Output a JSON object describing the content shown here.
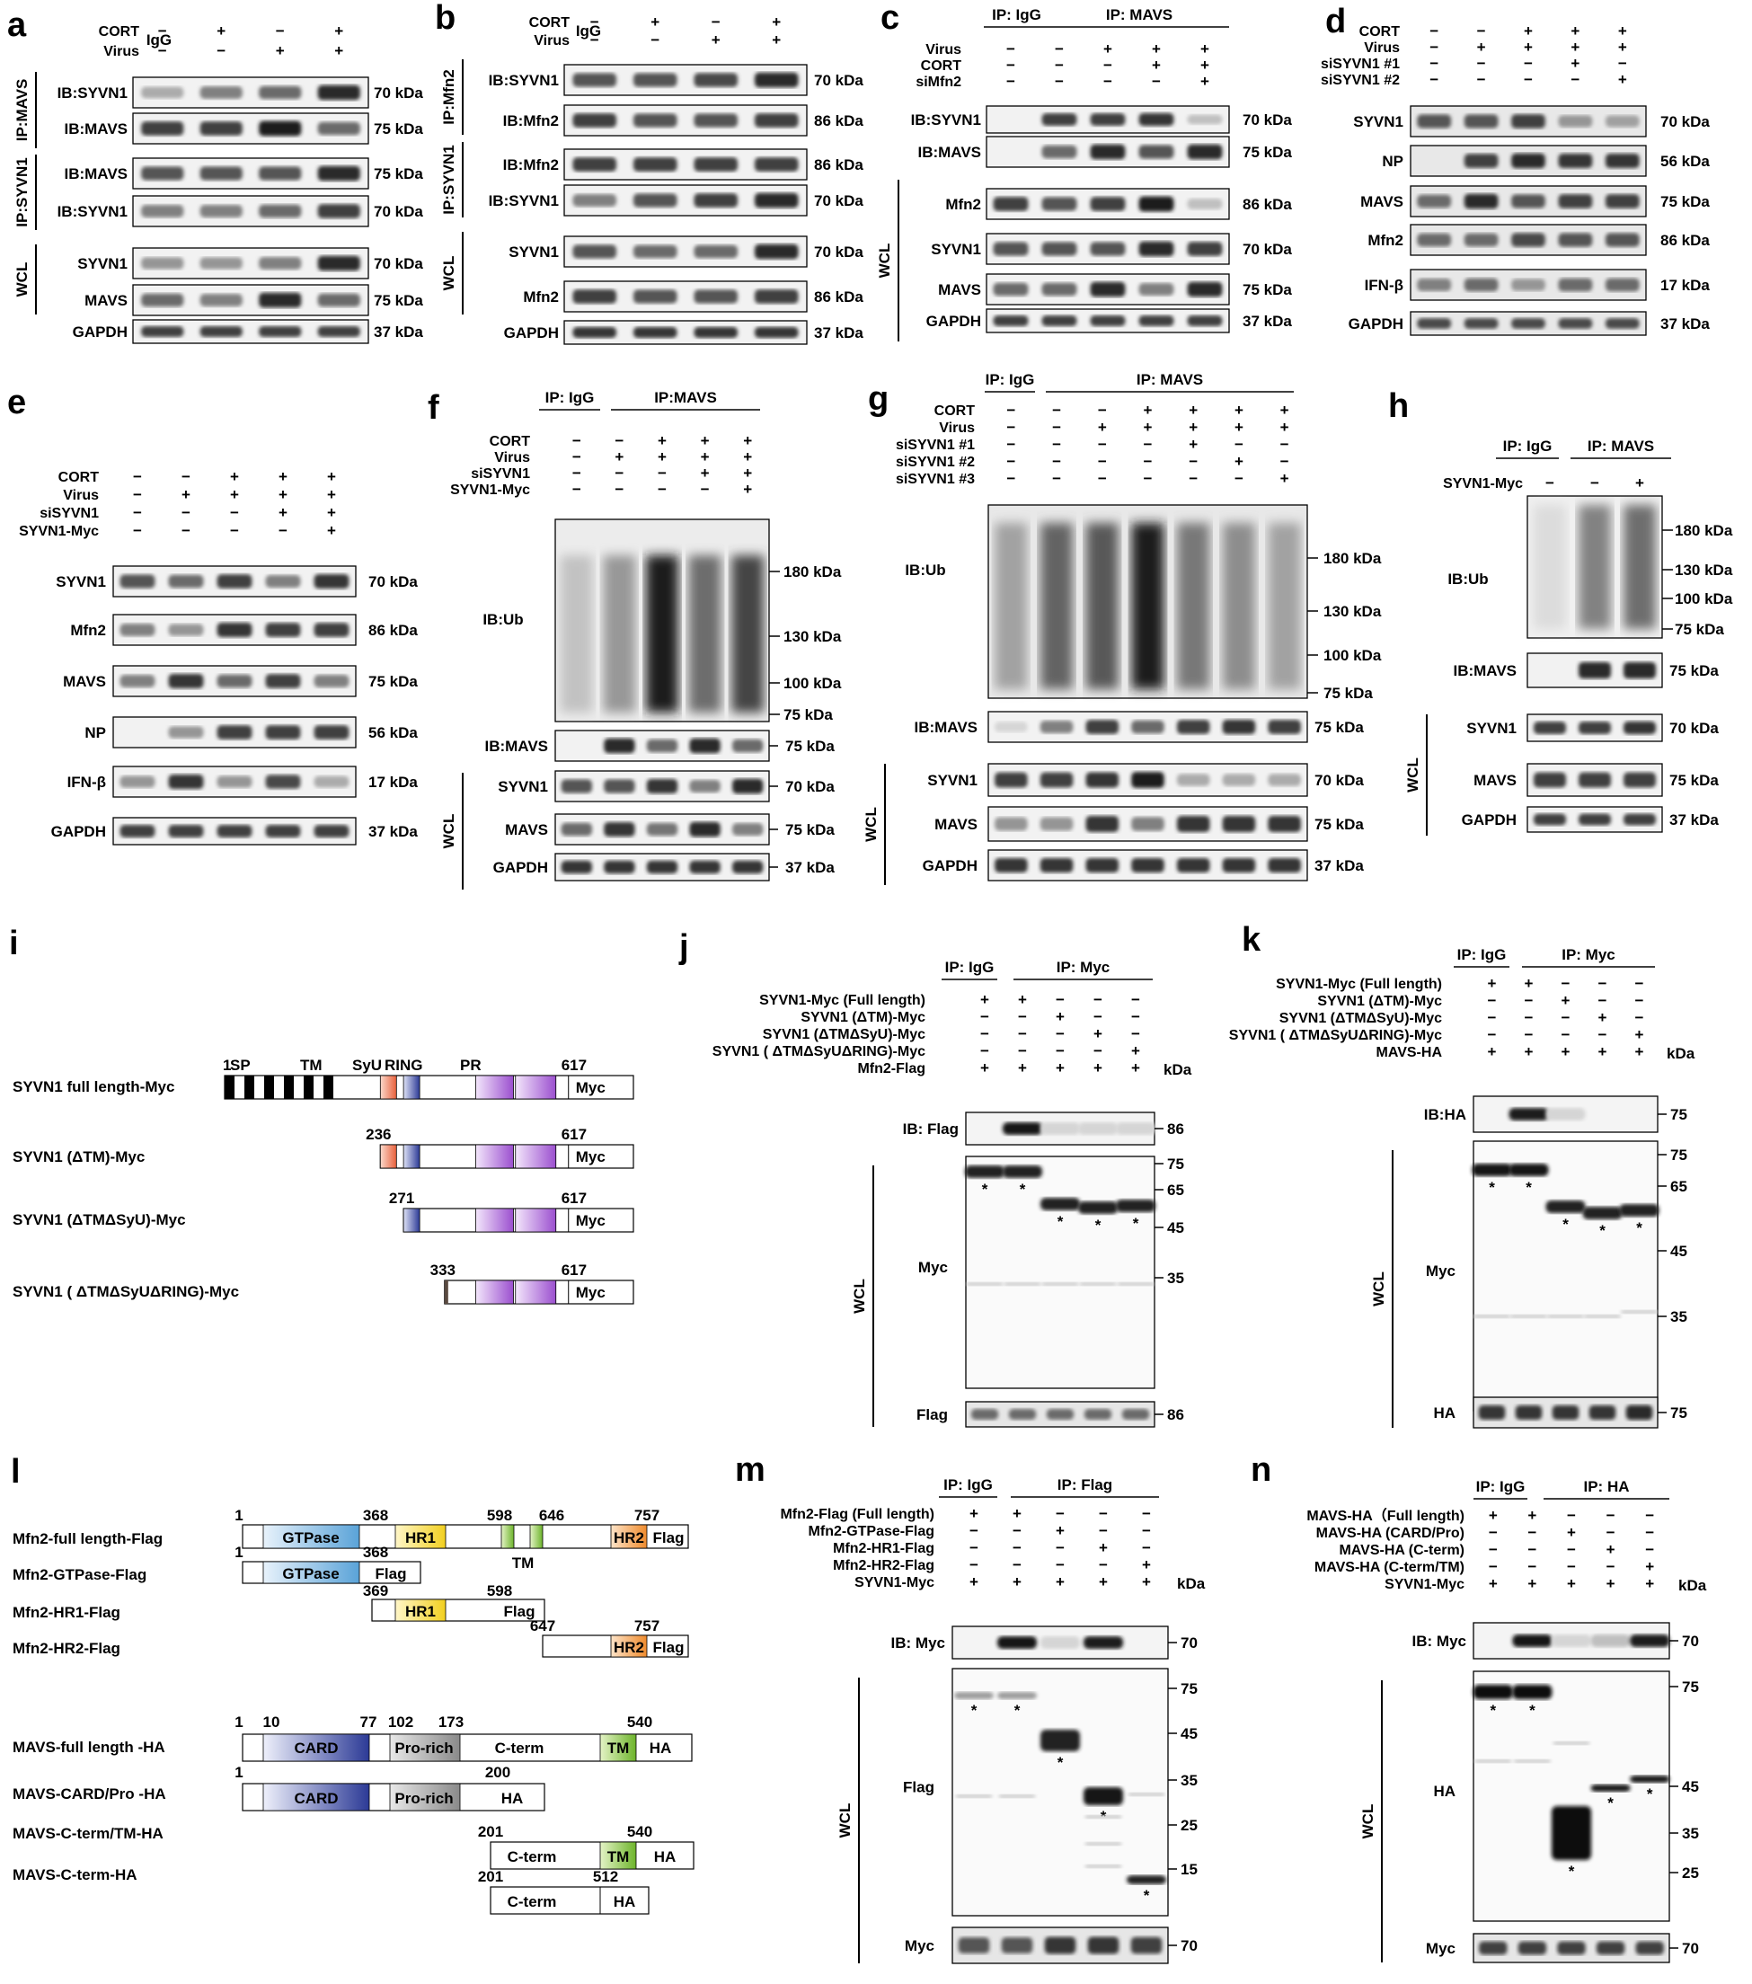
{
  "panels": {
    "a": {
      "letter": "a",
      "row_labels": [
        "CORT",
        "Virus"
      ],
      "extra_label": "IgG",
      "conditions": [
        [
          "−",
          "+",
          "−",
          "+"
        ],
        [
          "−",
          "−",
          "+",
          "+"
        ]
      ],
      "groups": [
        "IP:MAVS",
        "IP:SYVN1",
        "WCL"
      ],
      "bands": [
        {
          "label": "IB:SYVN1",
          "kda": "70 kDa",
          "intensity": [
            0.3,
            0.5,
            0.6,
            0.9
          ]
        },
        {
          "label": "IB:MAVS",
          "kda": "75 kDa",
          "intensity": [
            0.8,
            0.8,
            0.95,
            0.6
          ]
        },
        {
          "label": "IB:MAVS",
          "kda": "75 kDa",
          "intensity": [
            0.7,
            0.7,
            0.7,
            0.9
          ]
        },
        {
          "label": "IB:SYVN1",
          "kda": "70 kDa",
          "intensity": [
            0.5,
            0.5,
            0.6,
            0.8
          ]
        },
        {
          "label": "SYVN1",
          "kda": "70 kDa",
          "intensity": [
            0.4,
            0.4,
            0.5,
            0.9
          ]
        },
        {
          "label": "MAVS",
          "kda": "75 kDa",
          "intensity": [
            0.6,
            0.5,
            0.9,
            0.6
          ]
        },
        {
          "label": "GAPDH",
          "kda": "37 kDa",
          "intensity": [
            0.8,
            0.8,
            0.8,
            0.8
          ]
        }
      ]
    },
    "b": {
      "letter": "b",
      "row_labels": [
        "CORT",
        "Virus"
      ],
      "extra_label": "IgG",
      "conditions": [
        [
          "−",
          "+",
          "−",
          "+"
        ],
        [
          "−",
          "−",
          "+",
          "+"
        ]
      ],
      "groups": [
        "IP:Mfn2",
        "IP:SYVN1",
        "WCL"
      ],
      "bands": [
        {
          "label": "IB:SYVN1",
          "kda": "70 kDa",
          "intensity": [
            0.7,
            0.7,
            0.75,
            0.9
          ]
        },
        {
          "label": "IB:Mfn2",
          "kda": "86 kDa",
          "intensity": [
            0.8,
            0.7,
            0.7,
            0.8
          ]
        },
        {
          "label": "IB:Mfn2",
          "kda": "86 kDa",
          "intensity": [
            0.8,
            0.8,
            0.8,
            0.8
          ]
        },
        {
          "label": "IB:SYVN1",
          "kda": "70 kDa",
          "intensity": [
            0.5,
            0.7,
            0.8,
            0.9
          ]
        },
        {
          "label": "SYVN1",
          "kda": "70 kDa",
          "intensity": [
            0.7,
            0.6,
            0.6,
            0.9
          ]
        },
        {
          "label": "Mfn2",
          "kda": "86 kDa",
          "intensity": [
            0.8,
            0.7,
            0.7,
            0.8
          ]
        },
        {
          "label": "GAPDH",
          "kda": "37 kDa",
          "intensity": [
            0.85,
            0.85,
            0.85,
            0.85
          ]
        }
      ]
    },
    "c": {
      "letter": "c",
      "ip_labels": [
        "IP: IgG",
        "IP: MAVS"
      ],
      "row_labels": [
        "Virus",
        "CORT",
        "siMfn2"
      ],
      "conditions": [
        [
          "−",
          "−",
          "+",
          "+",
          "+"
        ],
        [
          "−",
          "−",
          "−",
          "+",
          "+"
        ],
        [
          "−",
          "−",
          "−",
          "−",
          "+"
        ]
      ],
      "groups": [
        "WCL"
      ],
      "bands": [
        {
          "label": "IB:SYVN1",
          "kda": "70 kDa",
          "intensity": [
            0.05,
            0.8,
            0.8,
            0.85,
            0.2
          ]
        },
        {
          "label": "IB:MAVS",
          "kda": "75 kDa",
          "intensity": [
            0.05,
            0.6,
            0.9,
            0.7,
            0.9
          ]
        },
        {
          "label": "Mfn2",
          "kda": "86 kDa",
          "intensity": [
            0.8,
            0.7,
            0.8,
            0.95,
            0.2
          ]
        },
        {
          "label": "SYVN1",
          "kda": "70 kDa",
          "intensity": [
            0.7,
            0.7,
            0.7,
            0.9,
            0.8
          ]
        },
        {
          "label": "MAVS",
          "kda": "75 kDa",
          "intensity": [
            0.6,
            0.6,
            0.9,
            0.5,
            0.9
          ]
        },
        {
          "label": "GAPDH",
          "kda": "37 kDa",
          "intensity": [
            0.8,
            0.8,
            0.8,
            0.8,
            0.8
          ]
        }
      ]
    },
    "d": {
      "letter": "d",
      "row_labels": [
        "CORT",
        "Virus",
        "siSYVN1 #1",
        "siSYVN1 #2"
      ],
      "conditions": [
        [
          "−",
          "−",
          "+",
          "+",
          "+"
        ],
        [
          "−",
          "+",
          "+",
          "+",
          "+"
        ],
        [
          "−",
          "−",
          "−",
          "+",
          "−"
        ],
        [
          "−",
          "−",
          "−",
          "−",
          "+"
        ]
      ],
      "bands": [
        {
          "label": "SYVN1",
          "kda": "70 kDa",
          "intensity": [
            0.7,
            0.7,
            0.8,
            0.4,
            0.35
          ]
        },
        {
          "label": "NP",
          "kda": "56 kDa",
          "intensity": [
            0.05,
            0.8,
            0.9,
            0.85,
            0.85
          ]
        },
        {
          "label": "MAVS",
          "kda": "75 kDa",
          "intensity": [
            0.6,
            0.9,
            0.7,
            0.8,
            0.8
          ]
        },
        {
          "label": "Mfn2",
          "kda": "86 kDa",
          "intensity": [
            0.6,
            0.6,
            0.75,
            0.7,
            0.7
          ]
        },
        {
          "label": "IFN-β",
          "kda": "17 kDa",
          "intensity": [
            0.5,
            0.6,
            0.4,
            0.6,
            0.6
          ]
        },
        {
          "label": "GAPDH",
          "kda": "37 kDa",
          "intensity": [
            0.75,
            0.75,
            0.75,
            0.75,
            0.75
          ]
        }
      ]
    },
    "e": {
      "letter": "e",
      "row_labels": [
        "CORT",
        "Virus",
        "siSYVN1",
        "SYVN1-Myc"
      ],
      "conditions": [
        [
          "−",
          "−",
          "+",
          "+",
          "+"
        ],
        [
          "−",
          "+",
          "+",
          "+",
          "+"
        ],
        [
          "−",
          "−",
          "−",
          "+",
          "+"
        ],
        [
          "−",
          "−",
          "−",
          "−",
          "+"
        ]
      ],
      "bands": [
        {
          "label": "SYVN1",
          "kda": "70 kDa",
          "intensity": [
            0.7,
            0.6,
            0.8,
            0.5,
            0.85
          ]
        },
        {
          "label": "Mfn2",
          "kda": "86 kDa",
          "intensity": [
            0.5,
            0.4,
            0.85,
            0.8,
            0.8
          ]
        },
        {
          "label": "MAVS",
          "kda": "75 kDa",
          "intensity": [
            0.5,
            0.85,
            0.6,
            0.8,
            0.5
          ]
        },
        {
          "label": "NP",
          "kda": "56 kDa",
          "intensity": [
            0.05,
            0.4,
            0.8,
            0.8,
            0.8
          ]
        },
        {
          "label": "IFN-β",
          "kda": "17 kDa",
          "intensity": [
            0.4,
            0.85,
            0.4,
            0.75,
            0.3
          ]
        },
        {
          "label": "GAPDH",
          "kda": "37 kDa",
          "intensity": [
            0.8,
            0.8,
            0.8,
            0.8,
            0.8
          ]
        }
      ]
    },
    "f": {
      "letter": "f",
      "ip_labels": [
        "IP: IgG",
        "IP:MAVS"
      ],
      "row_labels": [
        "CORT",
        "Virus",
        "siSYVN1",
        "SYVN1-Myc"
      ],
      "conditions": [
        [
          "−",
          "−",
          "+",
          "+",
          "+"
        ],
        [
          "−",
          "+",
          "+",
          "+",
          "+"
        ],
        [
          "−",
          "−",
          "−",
          "+",
          "+"
        ],
        [
          "−",
          "−",
          "−",
          "−",
          "+"
        ]
      ],
      "ub_label": "IB:Ub",
      "ub_intensity": [
        0.15,
        0.35,
        0.95,
        0.55,
        0.75
      ],
      "markers": [
        "180 kDa",
        "130 kDa",
        "100 kDa",
        "75 kDa"
      ],
      "group": "WCL",
      "bands": [
        {
          "label": "IB:MAVS",
          "kda": "75 kDa",
          "intensity": [
            0.05,
            0.9,
            0.6,
            0.9,
            0.6
          ]
        },
        {
          "label": "SYVN1",
          "kda": "70 kDa",
          "intensity": [
            0.7,
            0.7,
            0.85,
            0.5,
            0.9
          ]
        },
        {
          "label": "MAVS",
          "kda": "75 kDa",
          "intensity": [
            0.6,
            0.85,
            0.55,
            0.9,
            0.5
          ]
        },
        {
          "label": "GAPDH",
          "kda": "37 kDa",
          "intensity": [
            0.85,
            0.85,
            0.85,
            0.85,
            0.85
          ]
        }
      ]
    },
    "g": {
      "letter": "g",
      "ip_labels": [
        "IP: IgG",
        "IP: MAVS"
      ],
      "row_labels": [
        "CORT",
        "Virus",
        "siSYVN1 #1",
        "siSYVN1 #2",
        "siSYVN1 #3"
      ],
      "conditions": [
        [
          "−",
          "−",
          "−",
          "+",
          "+",
          "+",
          "+"
        ],
        [
          "−",
          "−",
          "+",
          "+",
          "+",
          "+",
          "+"
        ],
        [
          "−",
          "−",
          "−",
          "−",
          "+",
          "−",
          "−"
        ],
        [
          "−",
          "−",
          "−",
          "−",
          "−",
          "+",
          "−"
        ],
        [
          "−",
          "−",
          "−",
          "−",
          "−",
          "−",
          "+"
        ]
      ],
      "ub_label": "IB:Ub",
      "ub_intensity": [
        0.3,
        0.6,
        0.65,
        0.95,
        0.5,
        0.4,
        0.3
      ],
      "markers": [
        "180 kDa",
        "130 kDa",
        "100 kDa",
        "75 kDa"
      ],
      "group": "WCL",
      "bands": [
        {
          "label": "IB:MAVS",
          "kda": "75 kDa",
          "intensity": [
            0.1,
            0.5,
            0.8,
            0.6,
            0.8,
            0.85,
            0.8
          ]
        },
        {
          "label": "SYVN1",
          "kda": "70 kDa",
          "intensity": [
            0.8,
            0.8,
            0.85,
            0.95,
            0.3,
            0.3,
            0.3
          ]
        },
        {
          "label": "MAVS",
          "kda": "75 kDa",
          "intensity": [
            0.4,
            0.4,
            0.85,
            0.5,
            0.85,
            0.85,
            0.85
          ]
        },
        {
          "label": "GAPDH",
          "kda": "37 kDa",
          "intensity": [
            0.85,
            0.85,
            0.85,
            0.85,
            0.85,
            0.85,
            0.85
          ]
        }
      ]
    },
    "h": {
      "letter": "h",
      "ip_labels": [
        "IP: IgG",
        "IP: MAVS"
      ],
      "row_label": "SYVN1-Myc",
      "conditions": [
        "−",
        "−",
        "+"
      ],
      "ub_label": "IB:Ub",
      "ub_intensity": [
        0.05,
        0.5,
        0.6
      ],
      "markers": [
        "180 kDa",
        "130 kDa",
        "100 kDa",
        "75 kDa"
      ],
      "group": "WCL",
      "bands": [
        {
          "label": "IB:MAVS",
          "kda": "75 kDa",
          "intensity": [
            0.05,
            0.9,
            0.9
          ]
        },
        {
          "label": "SYVN1",
          "kda": "70 kDa",
          "intensity": [
            0.8,
            0.8,
            0.85
          ]
        },
        {
          "label": "MAVS",
          "kda": "75 kDa",
          "intensity": [
            0.8,
            0.8,
            0.8
          ]
        },
        {
          "label": "GAPDH",
          "kda": "37 kDa",
          "intensity": [
            0.8,
            0.8,
            0.8
          ]
        }
      ]
    },
    "i": {
      "letter": "i",
      "constructs": [
        {
          "name": "SYVN1 full length-Myc",
          "start": "1",
          "end": "617",
          "tag": "Myc"
        },
        {
          "name": "SYVN1 (ΔTM)-Myc",
          "start": "236",
          "end": "617",
          "tag": "Myc"
        },
        {
          "name": "SYVN1 (ΔTMΔSyU)-Myc",
          "start": "271",
          "end": "617",
          "tag": "Myc"
        },
        {
          "name": "SYVN1 ( ΔTMΔSyUΔRING)-Myc",
          "start": "333",
          "end": "617",
          "tag": "Myc"
        }
      ],
      "domains": [
        "SP",
        "TM",
        "SyU",
        "RING",
        "PR"
      ],
      "colors": {
        "SyU": "#e8603c",
        "RING": "#3a4fa8",
        "PR": "#9b4fcf"
      }
    },
    "j": {
      "letter": "j",
      "ip_labels": [
        "IP: IgG",
        "IP: Myc"
      ],
      "row_labels": [
        "SYVN1-Myc (Full length)",
        "SYVN1 (ΔTM)-Myc",
        "SYVN1 (ΔTMΔSyU)-Myc",
        "SYVN1 ( ΔTMΔSyUΔRING)-Myc",
        "Mfn2-Flag"
      ],
      "conditions": [
        [
          "+",
          "+",
          "−",
          "−",
          "−"
        ],
        [
          "−",
          "−",
          "+",
          "−",
          "−"
        ],
        [
          "−",
          "−",
          "−",
          "+",
          "−"
        ],
        [
          "−",
          "−",
          "−",
          "−",
          "+"
        ],
        [
          "+",
          "+",
          "+",
          "+",
          "+"
        ]
      ],
      "kda": "kDa",
      "ib_label": "IB: Flag",
      "ib_marker": "86",
      "wcl_label": "Myc",
      "wcl_markers": [
        "75",
        "65",
        "45",
        "35"
      ],
      "bottom_label": "Flag",
      "bottom_marker": "86",
      "group": "WCL"
    },
    "k": {
      "letter": "k",
      "ip_labels": [
        "IP: IgG",
        "IP: Myc"
      ],
      "row_labels": [
        "SYVN1-Myc (Full length)",
        "SYVN1 (ΔTM)-Myc",
        "SYVN1 (ΔTMΔSyU)-Myc",
        "SYVN1 ( ΔTMΔSyUΔRING)-Myc",
        "MAVS-HA"
      ],
      "conditions": [
        [
          "+",
          "+",
          "−",
          "−",
          "−"
        ],
        [
          "−",
          "−",
          "+",
          "−",
          "−"
        ],
        [
          "−",
          "−",
          "−",
          "+",
          "−"
        ],
        [
          "−",
          "−",
          "−",
          "−",
          "+"
        ],
        [
          "+",
          "+",
          "+",
          "+",
          "+"
        ]
      ],
      "kda": "kDa",
      "ib_label": "IB:HA",
      "ib_marker": "75",
      "wcl_label": "Myc",
      "wcl_markers": [
        "75",
        "65",
        "45",
        "35"
      ],
      "bottom_label": "HA",
      "bottom_marker": "75",
      "group": "WCL"
    },
    "l": {
      "letter": "l",
      "mfn2": [
        {
          "name": "Mfn2-full length-Flag"
        },
        {
          "name": "Mfn2-GTPase-Flag"
        },
        {
          "name": "Mfn2-HR1-Flag"
        },
        {
          "name": "Mfn2-HR2-Flag"
        }
      ],
      "mavs": [
        {
          "name": "MAVS-full length -HA"
        },
        {
          "name": "MAVS-CARD/Pro -HA"
        },
        {
          "name": "MAVS-C-term/TM-HA"
        },
        {
          "name": "MAVS-C-term-HA"
        }
      ],
      "mfn2_numbers": [
        "1",
        "368",
        "598",
        "646",
        "757",
        "1",
        "368",
        "369",
        "598",
        "647",
        "757"
      ],
      "mavs_numbers": [
        "1",
        "10",
        "77",
        "102",
        "173",
        "540",
        "1",
        "200",
        "201",
        "540",
        "201",
        "512"
      ],
      "domain_labels": {
        "gtpase": "GTPase",
        "hr1": "HR1",
        "hr2": "HR2",
        "tm": "TM",
        "card": "CARD",
        "pro": "Pro-rich",
        "cterm": "C-term",
        "flag": "Flag",
        "ha": "HA"
      }
    },
    "m": {
      "letter": "m",
      "ip_labels": [
        "IP: IgG",
        "IP: Flag"
      ],
      "row_labels": [
        "Mfn2-Flag  (Full length)",
        "Mfn2-GTPase-Flag",
        "Mfn2-HR1-Flag",
        "Mfn2-HR2-Flag",
        "SYVN1-Myc"
      ],
      "conditions": [
        [
          "+",
          "+",
          "−",
          "−",
          "−"
        ],
        [
          "−",
          "−",
          "+",
          "−",
          "−"
        ],
        [
          "−",
          "−",
          "−",
          "+",
          "−"
        ],
        [
          "−",
          "−",
          "−",
          "−",
          "+"
        ],
        [
          "+",
          "+",
          "+",
          "+",
          "+"
        ]
      ],
      "kda": "kDa",
      "ib_label": "IB: Myc",
      "ib_marker": "70",
      "wcl_label": "Flag",
      "wcl_markers": [
        "75",
        "45",
        "35",
        "25",
        "15"
      ],
      "bottom_label": "Myc",
      "bottom_marker": "70",
      "group": "WCL"
    },
    "n": {
      "letter": "n",
      "ip_labels": [
        "IP: IgG",
        "IP: HA"
      ],
      "row_labels": [
        "MAVS-HA（Full length)",
        "MAVS-HA (CARD/Pro)",
        "MAVS-HA (C-term)",
        "MAVS-HA (C-term/TM)",
        "SYVN1-Myc"
      ],
      "conditions": [
        [
          "+",
          "+",
          "−",
          "−",
          "−"
        ],
        [
          "−",
          "−",
          "+",
          "−",
          "−"
        ],
        [
          "−",
          "−",
          "−",
          "+",
          "−"
        ],
        [
          "−",
          "−",
          "−",
          "−",
          "+"
        ],
        [
          "+",
          "+",
          "+",
          "+",
          "+"
        ]
      ],
      "kda": "kDa",
      "ib_label": "IB: Myc",
      "ib_marker": "70",
      "wcl_label": "HA",
      "wcl_markers": [
        "75",
        "45",
        "35",
        "25"
      ],
      "bottom_label": "Myc",
      "bottom_marker": "70",
      "group": "WCL"
    }
  }
}
